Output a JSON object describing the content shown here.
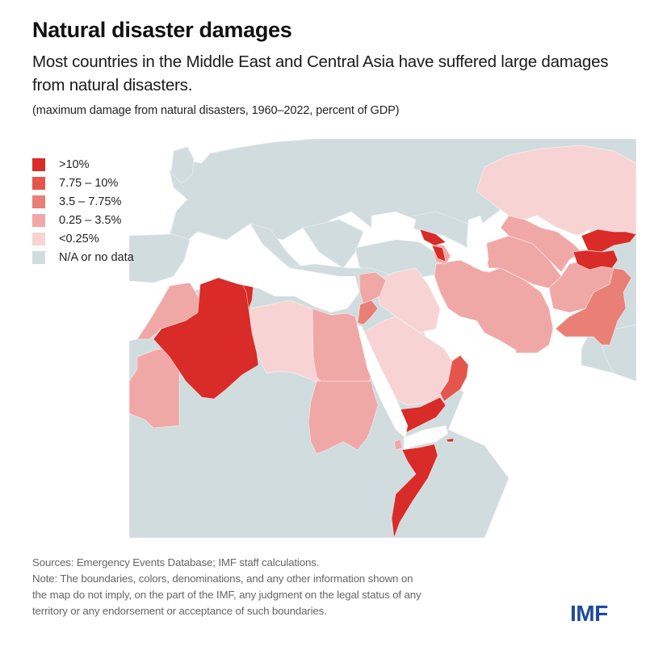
{
  "header": {
    "title": "Natural disaster damages",
    "subtitle": "Most countries in the Middle East and Central Asia have suffered large damages from natural disasters.",
    "unit_note": "(maximum damage from natural disasters, 1960–2022, percent of GDP)"
  },
  "legend": {
    "items": [
      {
        "label": ">10%",
        "color": "#d92b27"
      },
      {
        "label": "7.75 – 10%",
        "color": "#e4554c"
      },
      {
        "label": "3.5 – 7.75%",
        "color": "#ea7f76"
      },
      {
        "label": "0.25 – 3.5%",
        "color": "#f0a8a6"
      },
      {
        "label": "<0.25%",
        "color": "#f7d4d3"
      },
      {
        "label": "N/A or no data",
        "color": "#d1dcdf"
      }
    ]
  },
  "map_data": {
    "background_land_color": "#d1dcdf",
    "countries": [
      {
        "name": "Algeria",
        "class": ">10%"
      },
      {
        "name": "Tunisia",
        "class": ">10%"
      },
      {
        "name": "Georgia",
        "class": ">10%"
      },
      {
        "name": "Armenia",
        "class": ">10%"
      },
      {
        "name": "Kyrgyzstan",
        "class": ">10%"
      },
      {
        "name": "Tajikistan",
        "class": ">10%"
      },
      {
        "name": "Yemen",
        "class": ">10%"
      },
      {
        "name": "Somalia",
        "class": ">10%"
      },
      {
        "name": "Oman",
        "class": "7.75 – 10%"
      },
      {
        "name": "Pakistan",
        "class": "3.5 – 7.75%"
      },
      {
        "name": "Jordan",
        "class": "3.5 – 7.75%"
      },
      {
        "name": "Morocco",
        "class": "0.25 – 3.5%"
      },
      {
        "name": "Mauritania",
        "class": "0.25 – 3.5%"
      },
      {
        "name": "Egypt",
        "class": "0.25 – 3.5%"
      },
      {
        "name": "Sudan",
        "class": "0.25 – 3.5%"
      },
      {
        "name": "Syria",
        "class": "0.25 – 3.5%"
      },
      {
        "name": "Iran",
        "class": "0.25 – 3.5%"
      },
      {
        "name": "Turkmenistan",
        "class": "0.25 – 3.5%"
      },
      {
        "name": "Uzbekistan",
        "class": "0.25 – 3.5%"
      },
      {
        "name": "Afghanistan",
        "class": "0.25 – 3.5%"
      },
      {
        "name": "Azerbaijan",
        "class": "0.25 – 3.5%"
      },
      {
        "name": "Djibouti",
        "class": "0.25 – 3.5%"
      },
      {
        "name": "Libya",
        "class": "<0.25%"
      },
      {
        "name": "Saudi Arabia",
        "class": "<0.25%"
      },
      {
        "name": "Iraq",
        "class": "<0.25%"
      },
      {
        "name": "Kazakhstan",
        "class": "<0.25%"
      }
    ]
  },
  "footer": {
    "sources": "Sources: Emergency Events Database; IMF staff calculations.",
    "note_lines": [
      "Note: The boundaries, colors, denominations, and any other information shown on",
      "the map do not imply, on the part of the IMF, any judgment on the legal status of any",
      "territory or any endorsement or acceptance of such boundaries."
    ]
  },
  "logo": {
    "text": "IMF",
    "color": "#1e4b9c"
  }
}
